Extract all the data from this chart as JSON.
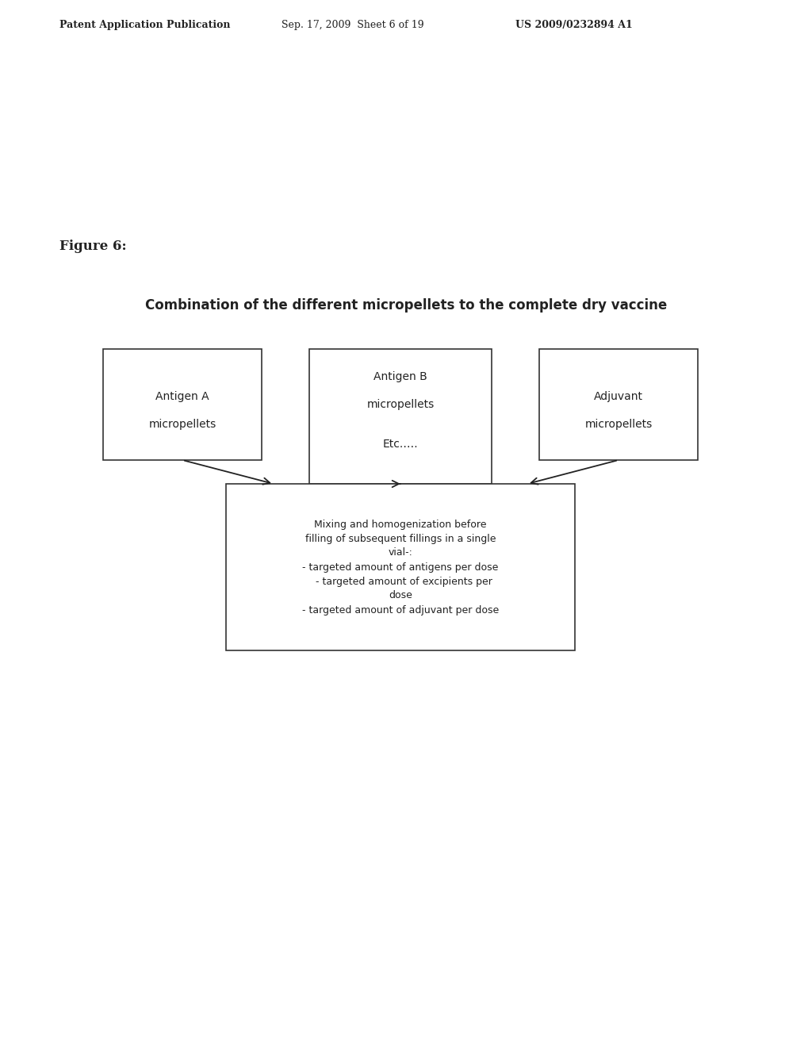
{
  "bg_color": "#ffffff",
  "header_left": "Patent Application Publication",
  "header_mid": "Sep. 17, 2009  Sheet 6 of 19",
  "header_right": "US 2009/0232894 A1",
  "figure_label": "Figure 6:",
  "diagram_title": "Combination of the different micropellets to the complete dry vaccine",
  "box1_lines": [
    "Antigen A",
    "micropellets"
  ],
  "box2_lines": [
    "Antigen B",
    "micropellets",
    "",
    "Etc.…."
  ],
  "box3_lines": [
    "Adjuvant",
    "micropellets"
  ],
  "bottom_box_lines": [
    "Mixing and homogenization before",
    "filling of subsequent fillings in a single",
    "vial-:",
    "- targeted amount of antigens per dose",
    "  - targeted amount of excipients per",
    "dose",
    "- targeted amount of adjuvant per dose"
  ],
  "box_edge_color": "#333333",
  "text_color": "#222222",
  "arrow_color": "#222222"
}
